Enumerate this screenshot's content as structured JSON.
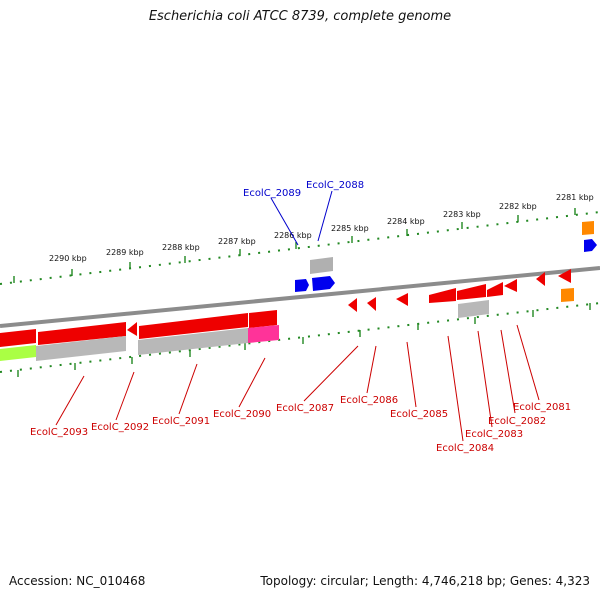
{
  "title": "Escherichia coli ATCC 8739, complete genome",
  "footer": {
    "accession": "Accession: NC_010468",
    "summary": "Topology: circular; Length: 4,746,218 bp; Genes: 4,323"
  },
  "colors": {
    "forward_label": "#0000cc",
    "reverse_label": "#cc0000",
    "tick": "#228822",
    "backbone": "#888888",
    "cds_reverse": "#ee0000",
    "cds_forward": "#0000ee",
    "rna": "#ff8800",
    "pseudo": "#aaaaaa"
  },
  "scale_labels": [
    "2290 kbp",
    "2289 kbp",
    "2288 kbp",
    "2287 kbp",
    "2286 kbp",
    "2285 kbp",
    "2284 kbp",
    "2283 kbp",
    "2282 kbp",
    "2281 kbp"
  ],
  "forward_genes": [
    "EcolC_2089",
    "EcolC_2088"
  ],
  "reverse_genes": [
    "EcolC_2093",
    "EcolC_2092",
    "EcolC_2091",
    "EcolC_2090",
    "EcolC_2087",
    "EcolC_2086",
    "EcolC_2085",
    "EcolC_2084",
    "EcolC_2083",
    "EcolC_2082",
    "EcolC_2081"
  ]
}
